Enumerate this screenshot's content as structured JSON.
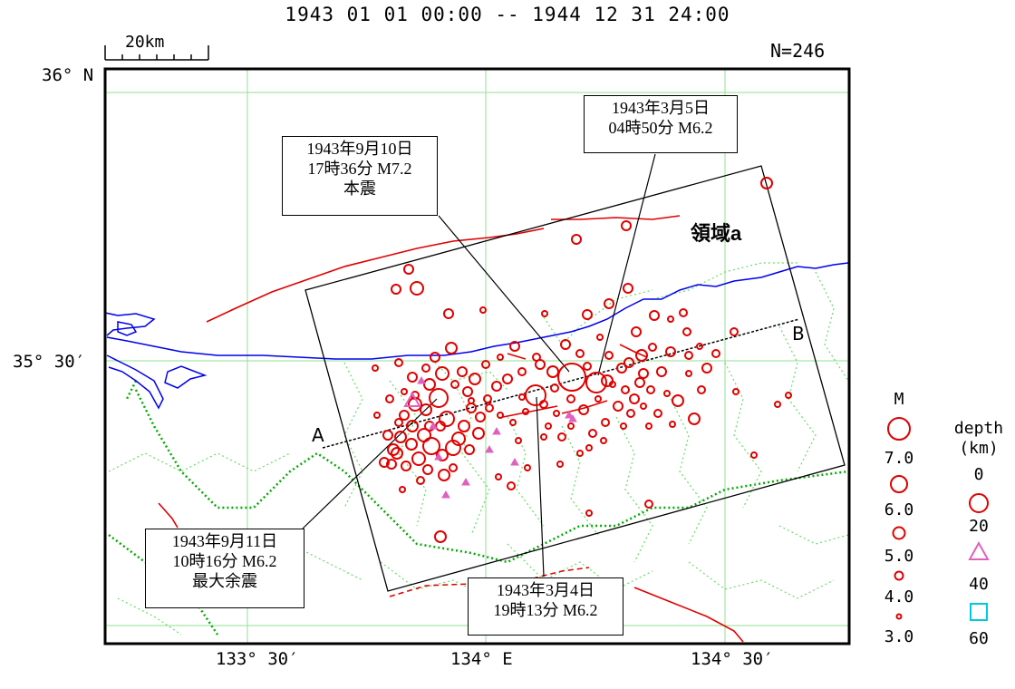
{
  "title": "1943 01 01 00:00 -- 1944 12 31 24:00",
  "count": "N=246",
  "scale_bar": "20km",
  "lat_labels": [
    "36° N",
    "35° 30′"
  ],
  "lon_labels": [
    "133° 30′",
    "134° E",
    "134° 30′"
  ],
  "region_label": "領域a",
  "section_labels": {
    "start": "A",
    "end": "B"
  },
  "annotations": {
    "mainshock": [
      "1943年9月10日",
      "17時36分 M7.2",
      "本震"
    ],
    "foreshock_mar5": [
      "1943年3月5日",
      "04時50分 M6.2"
    ],
    "aftershock_sep11": [
      "1943年9月11日",
      "10時16分 M6.2",
      "最大余震"
    ],
    "foreshock_mar4": [
      "1943年3月4日",
      "19時13分 M6.2"
    ]
  },
  "legend": {
    "magnitude": {
      "title": "M",
      "values": [
        "7.0",
        "6.0",
        "5.0",
        "4.0",
        "3.0"
      ]
    },
    "depth": {
      "title": [
        "depth",
        "(km)"
      ],
      "values": [
        "0",
        "20",
        "40",
        "60"
      ]
    }
  },
  "colors": {
    "events_shallow": "#e00000",
    "events_20_40": "#e060c0",
    "events_40_60": "#00c8e0",
    "coast": "#0000ee",
    "faults": "#e00000",
    "grid": "#90e090",
    "boundaries": "#00aa00"
  }
}
